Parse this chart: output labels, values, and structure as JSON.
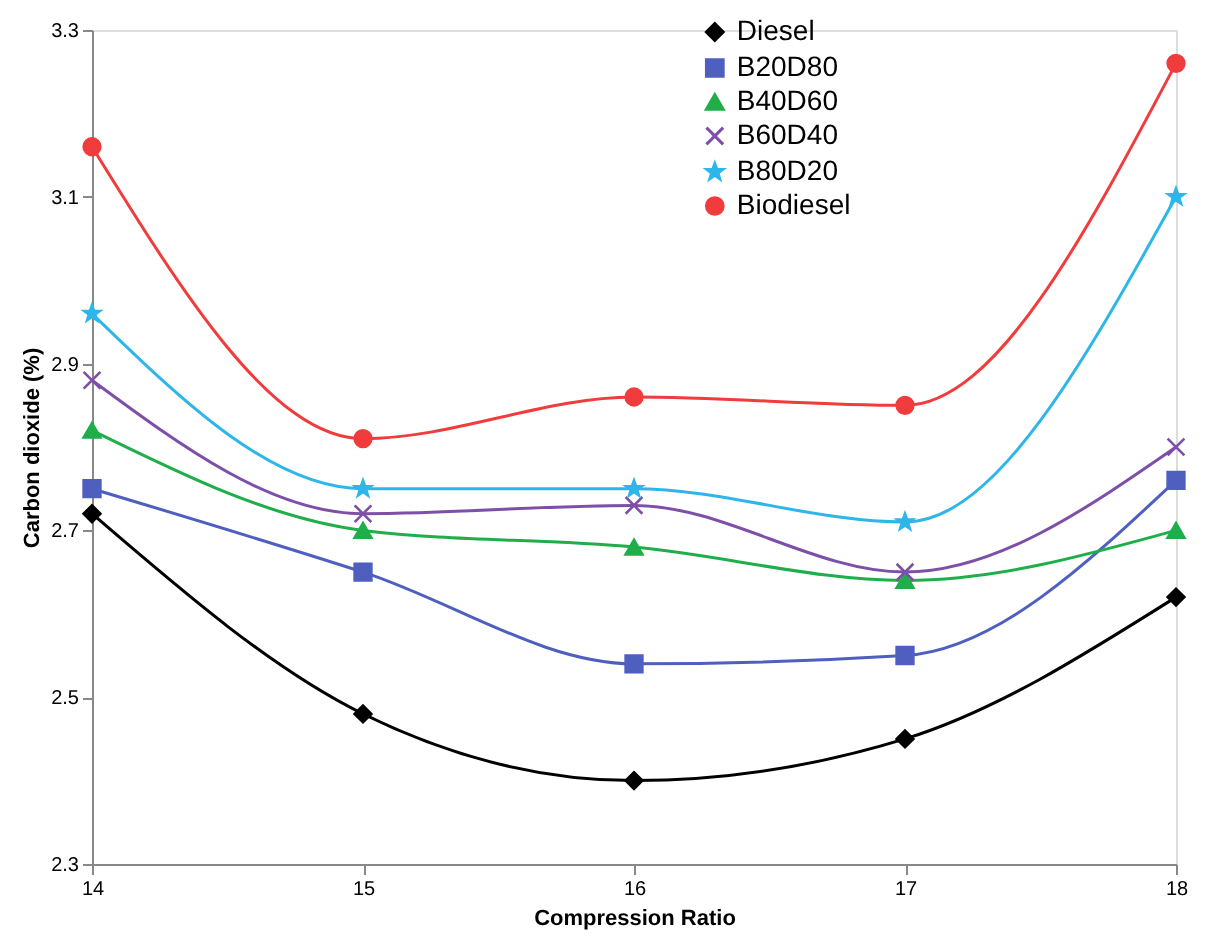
{
  "chart_data": {
    "type": "line",
    "xlabel": "Compression Ratio",
    "ylabel": "Carbon dioxide  (%)",
    "x": [
      14,
      15,
      16,
      17,
      18
    ],
    "series": [
      {
        "name": "Diesel",
        "color": "#000000",
        "marker": "diamond",
        "values": [
          2.72,
          2.48,
          2.4,
          2.45,
          2.62
        ]
      },
      {
        "name": "B20D80",
        "color": "#4f5fc0",
        "marker": "square",
        "values": [
          2.75,
          2.65,
          2.54,
          2.55,
          2.76
        ]
      },
      {
        "name": "B40D60",
        "color": "#1fae4a",
        "marker": "triangle",
        "values": [
          2.82,
          2.7,
          2.68,
          2.64,
          2.7
        ]
      },
      {
        "name": "B60D40",
        "color": "#7e4fa8",
        "marker": "cross",
        "values": [
          2.88,
          2.72,
          2.73,
          2.65,
          2.8
        ]
      },
      {
        "name": "B80D20",
        "color": "#2eb6ea",
        "marker": "star",
        "values": [
          2.96,
          2.75,
          2.75,
          2.71,
          3.1
        ]
      },
      {
        "name": "Biodiesel",
        "color": "#f03c3c",
        "marker": "circle",
        "values": [
          3.16,
          2.81,
          2.86,
          2.85,
          3.26
        ]
      }
    ],
    "xlim": [
      14,
      18
    ],
    "xticks": [
      14,
      15,
      16,
      17,
      18
    ],
    "ylim": [
      2.3,
      3.3
    ],
    "yticks": [
      2.3,
      2.5,
      2.7,
      2.9,
      3.1,
      3.3
    ],
    "grid": false,
    "legend": "top right",
    "line_style": "solid"
  }
}
